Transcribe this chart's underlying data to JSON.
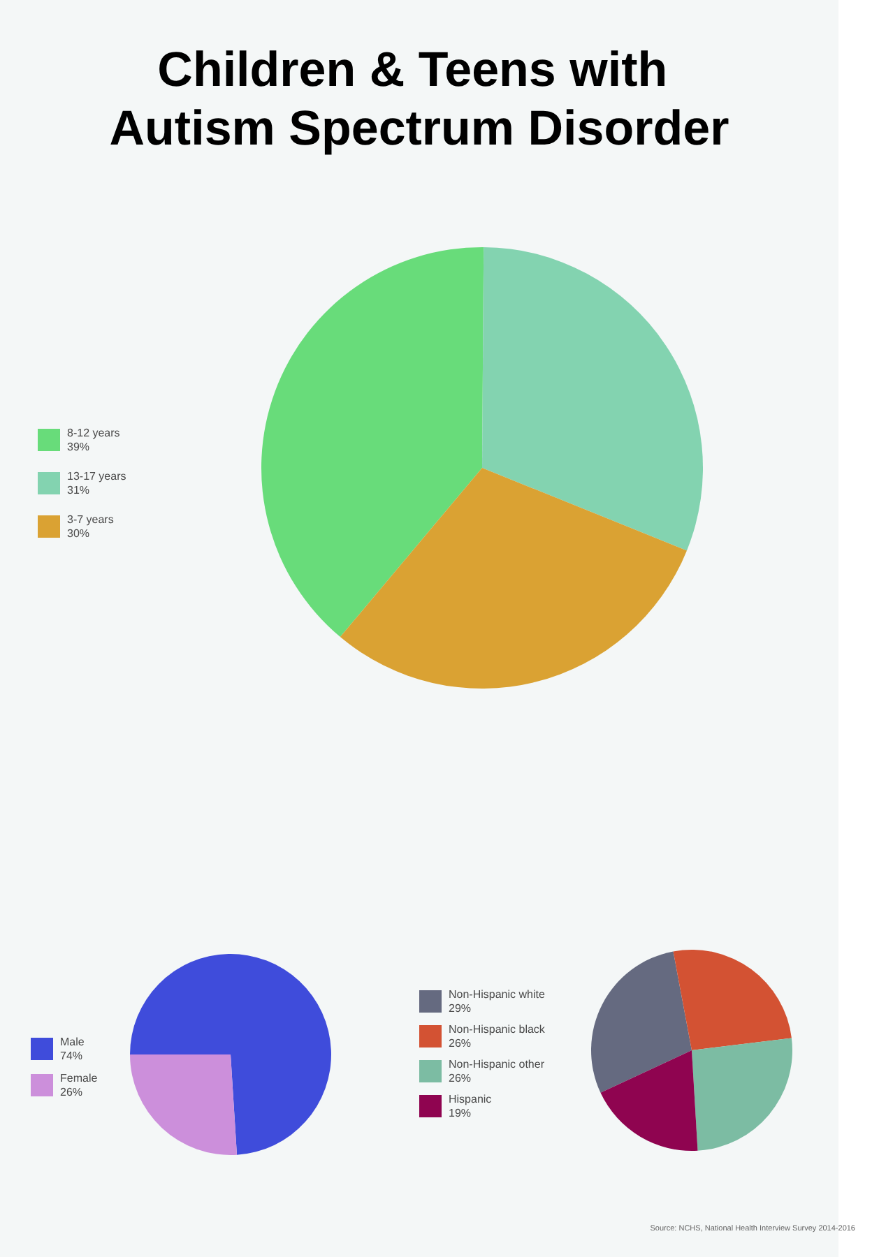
{
  "chart_data": [
    {
      "type": "pie",
      "title": "Children & Teens with Autism Spectrum Disorder",
      "categories": [
        "8-12 years",
        "13-17 years",
        "3-7 years"
      ],
      "values": [
        39,
        31,
        30
      ],
      "value_labels": [
        "39%",
        "31%",
        "30%"
      ],
      "colors": [
        "#68dc7a",
        "#83d3b0",
        "#daa233"
      ],
      "legend": "left"
    },
    {
      "type": "pie",
      "categories": [
        "Male",
        "Female"
      ],
      "values": [
        74,
        26
      ],
      "value_labels": [
        "74%",
        "26%"
      ],
      "colors": [
        "#3f4cdb",
        "#cc8fdb"
      ],
      "legend": "left"
    },
    {
      "type": "pie",
      "categories": [
        "Non-Hispanic white",
        "Non-Hispanic black",
        "Non-Hispanic other",
        "Hispanic"
      ],
      "values": [
        29,
        26,
        26,
        19
      ],
      "value_labels": [
        "29%",
        "26%",
        "26%",
        "19%"
      ],
      "colors": [
        "#656a80",
        "#d35233",
        "#7cbca3",
        "#8f0450"
      ],
      "legend": "left",
      "annotations": [
        "Source: NCHS, National Health Interview Survey 2014-2016"
      ]
    }
  ]
}
